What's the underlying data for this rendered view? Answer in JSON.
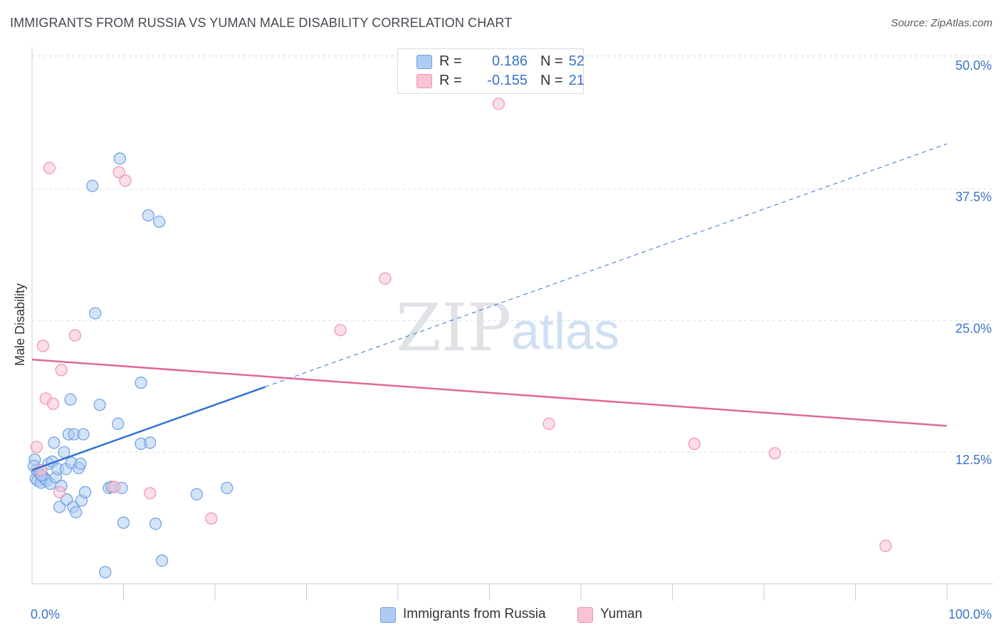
{
  "title": "IMMIGRANTS FROM RUSSIA VS YUMAN MALE DISABILITY CORRELATION CHART",
  "source": "Source: ZipAtlas.com",
  "watermark": {
    "zip": "ZIP",
    "atlas": "atlas"
  },
  "legend": {
    "series": [
      {
        "name": "Immigrants from Russia",
        "r_label": "R =",
        "r_value": "0.186",
        "n_label": "N =",
        "n_value": "52",
        "fill": "#aeccf3",
        "stroke": "#6f9fe0"
      },
      {
        "name": "Yuman",
        "r_label": "R =",
        "r_value": "-0.155",
        "n_label": "N =",
        "n_value": "21",
        "fill": "#f8c3d2",
        "stroke": "#ee93ae"
      }
    ]
  },
  "chart_data": {
    "type": "scatter",
    "title": "IMMIGRANTS FROM RUSSIA VS YUMAN MALE DISABILITY CORRELATION CHART",
    "xlabel": "",
    "ylabel": "Male Disability",
    "xlim": [
      0,
      100
    ],
    "ylim": [
      0,
      51
    ],
    "x_tick_labels": [
      {
        "value": 0,
        "label": "0.0%"
      },
      {
        "value": 100,
        "label": "100.0%"
      }
    ],
    "y_ticks": [
      {
        "value": 12.5,
        "label": "12.5%"
      },
      {
        "value": 25.0,
        "label": "25.0%"
      },
      {
        "value": 37.5,
        "label": "37.5%"
      },
      {
        "value": 50.0,
        "label": "50.0%"
      }
    ],
    "x_minor_ticks": [
      10,
      20,
      30,
      40,
      50,
      60,
      70,
      80,
      90,
      100
    ],
    "grid": true,
    "series": [
      {
        "name": "Immigrants from Russia",
        "color": "#6f9fe0",
        "fill": "#aeccf3",
        "points": [
          [
            0.3,
            11.8
          ],
          [
            0.4,
            10.0
          ],
          [
            0.5,
            10.8
          ],
          [
            0.6,
            9.8
          ],
          [
            0.8,
            10.5
          ],
          [
            1.0,
            9.6
          ],
          [
            1.2,
            10.2
          ],
          [
            1.4,
            10.0
          ],
          [
            1.6,
            9.8
          ],
          [
            1.8,
            11.4
          ],
          [
            2.0,
            9.5
          ],
          [
            2.2,
            11.6
          ],
          [
            2.4,
            13.4
          ],
          [
            2.6,
            10.1
          ],
          [
            2.8,
            10.9
          ],
          [
            3.0,
            7.3
          ],
          [
            3.2,
            9.3
          ],
          [
            3.5,
            12.5
          ],
          [
            3.7,
            10.9
          ],
          [
            3.8,
            8.0
          ],
          [
            4.0,
            14.2
          ],
          [
            4.2,
            17.5
          ],
          [
            4.3,
            11.5
          ],
          [
            4.5,
            7.3
          ],
          [
            4.6,
            14.2
          ],
          [
            4.8,
            6.8
          ],
          [
            5.1,
            11.0
          ],
          [
            5.3,
            11.4
          ],
          [
            5.4,
            7.9
          ],
          [
            5.6,
            14.2
          ],
          [
            5.8,
            8.7
          ],
          [
            6.6,
            37.8
          ],
          [
            6.9,
            25.7
          ],
          [
            7.4,
            17.0
          ],
          [
            8.0,
            1.1
          ],
          [
            8.4,
            9.1
          ],
          [
            9.4,
            15.2
          ],
          [
            9.6,
            40.4
          ],
          [
            10.0,
            5.8
          ],
          [
            9.8,
            9.1
          ],
          [
            11.9,
            19.1
          ],
          [
            11.9,
            13.3
          ],
          [
            12.7,
            35.0
          ],
          [
            12.9,
            13.4
          ],
          [
            13.5,
            5.7
          ],
          [
            13.9,
            34.4
          ],
          [
            14.2,
            2.2
          ],
          [
            18.0,
            8.5
          ],
          [
            21.3,
            9.1
          ],
          [
            8.7,
            9.2
          ],
          [
            1.0,
            10.3
          ],
          [
            0.2,
            11.2
          ]
        ],
        "trend": {
          "x0": 0,
          "y0": 10.8,
          "x1": 100,
          "y1": 41.8,
          "solid_until": 25.5
        }
      },
      {
        "name": "Yuman",
        "color": "#ee93ae",
        "fill": "#f8c3d2",
        "points": [
          [
            0.5,
            13.0
          ],
          [
            1.0,
            10.8
          ],
          [
            1.2,
            22.6
          ],
          [
            1.5,
            17.6
          ],
          [
            1.9,
            39.5
          ],
          [
            2.3,
            17.1
          ],
          [
            3.0,
            8.7
          ],
          [
            3.2,
            20.3
          ],
          [
            4.7,
            23.6
          ],
          [
            9.0,
            9.2
          ],
          [
            9.5,
            39.1
          ],
          [
            10.2,
            38.3
          ],
          [
            12.9,
            8.6
          ],
          [
            19.6,
            6.2
          ],
          [
            33.7,
            24.1
          ],
          [
            38.6,
            29.0
          ],
          [
            51.0,
            45.6
          ],
          [
            56.5,
            15.2
          ],
          [
            72.4,
            13.3
          ],
          [
            81.2,
            12.4
          ],
          [
            93.3,
            3.6
          ]
        ],
        "trend": {
          "x0": 0,
          "y0": 21.3,
          "x1": 100,
          "y1": 15.0
        }
      }
    ]
  }
}
